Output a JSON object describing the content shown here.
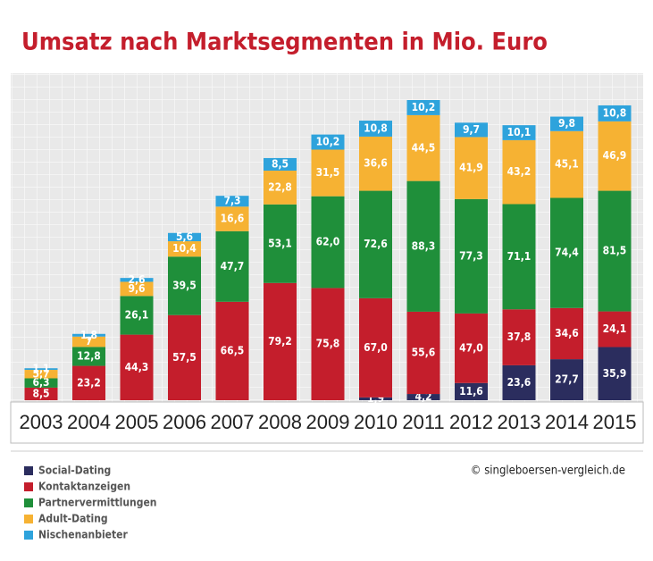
{
  "chart_data": {
    "type": "bar",
    "stacked": true,
    "title": "Umsatz nach Marktsegmenten in Mio. Euro",
    "source": "© singleboersen-vergleich.de",
    "categories": [
      "2003",
      "2004",
      "2005",
      "2006",
      "2007",
      "2008",
      "2009",
      "2010",
      "2011",
      "2012",
      "2013",
      "2014",
      "2015"
    ],
    "series": [
      {
        "name": "Social-Dating",
        "color": "#2b2d5e",
        "values": [
          null,
          null,
          null,
          null,
          null,
          null,
          null,
          1.9,
          4.2,
          11.6,
          23.6,
          27.7,
          35.9
        ],
        "value_labels": [
          null,
          null,
          null,
          null,
          null,
          null,
          null,
          "1,9",
          "4,2",
          "11,6",
          "23,6",
          "27,7",
          "35,9"
        ]
      },
      {
        "name": "Kontaktanzeigen",
        "color": "#c41e2c",
        "values": [
          8.5,
          23.2,
          44.3,
          57.5,
          66.5,
          79.2,
          75.8,
          67.0,
          55.6,
          47.0,
          37.8,
          34.6,
          24.1
        ],
        "value_labels": [
          "8,5",
          "23,2",
          "44,3",
          "57,5",
          "66,5",
          "79,2",
          "75,8",
          "67,0",
          "55,6",
          "47,0",
          "37,8",
          "34,6",
          "24,1"
        ]
      },
      {
        "name": "Partnervermittlungen",
        "color": "#1f8f3a",
        "values": [
          6.3,
          12.8,
          26.1,
          39.5,
          47.7,
          53.1,
          62.0,
          72.6,
          88.3,
          77.3,
          71.1,
          74.4,
          81.5
        ],
        "value_labels": [
          "6,3",
          "12,8",
          "26,1",
          "39,5",
          "47,7",
          "53,1",
          "62,0",
          "72,6",
          "88,3",
          "77,3",
          "71,1",
          "74,4",
          "81,5"
        ]
      },
      {
        "name": "Adult-Dating",
        "color": "#f6b233",
        "values": [
          5.7,
          7,
          9.6,
          10.4,
          16.6,
          22.8,
          31.5,
          36.6,
          44.5,
          41.9,
          43.2,
          45.1,
          46.9
        ],
        "value_labels": [
          "5,7",
          "7",
          "9,6",
          "10,4",
          "16,6",
          "22,8",
          "31,5",
          "36,6",
          "44,5",
          "41,9",
          "43,2",
          "45,1",
          "46,9"
        ]
      },
      {
        "name": "Nischenanbieter",
        "color": "#2ea3dc",
        "values": [
          1.1,
          1.8,
          2.6,
          5.6,
          7.3,
          8.5,
          10.2,
          10.8,
          10.2,
          9.7,
          10.1,
          9.8,
          10.8
        ],
        "value_labels": [
          "1,1",
          "1,8",
          "2,6",
          "5,6",
          "7,3",
          "8,5",
          "10,2",
          "10,8",
          "10,2",
          "9,7",
          "10,1",
          "9,8",
          "10,8"
        ]
      }
    ]
  }
}
